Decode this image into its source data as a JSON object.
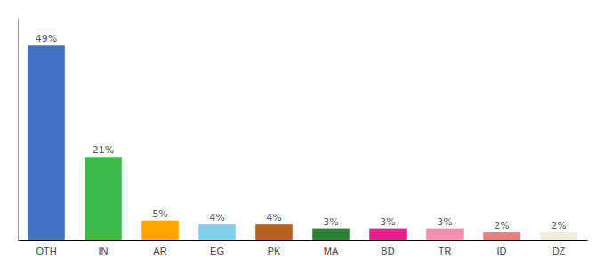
{
  "chart_data": {
    "type": "bar",
    "categories": [
      "OTH",
      "IN",
      "AR",
      "EG",
      "PK",
      "MA",
      "BD",
      "TR",
      "ID",
      "DZ"
    ],
    "values": [
      49,
      21,
      5,
      4,
      4,
      3,
      3,
      3,
      2,
      2
    ],
    "value_labels": [
      "49%",
      "21%",
      "5%",
      "4%",
      "4%",
      "3%",
      "3%",
      "3%",
      "2%",
      "2%"
    ],
    "colors": [
      "#4472C4",
      "#3CB94A",
      "#FFA500",
      "#87CEEB",
      "#B5621E",
      "#2E7D32",
      "#E91E8C",
      "#F48FB1",
      "#E88080",
      "#F0EDD8"
    ],
    "ylim": [
      0,
      56
    ],
    "data_labels": true,
    "tick_labels": "x"
  }
}
